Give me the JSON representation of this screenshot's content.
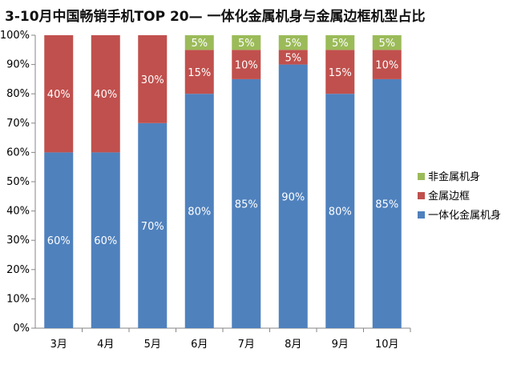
{
  "chart_data": {
    "type": "bar",
    "stacked": true,
    "title": "3-10月中国畅销手机TOP 20— 一体化金属机身与金属边框机型占比",
    "categories": [
      "3月",
      "4月",
      "5月",
      "6月",
      "7月",
      "8月",
      "9月",
      "10月"
    ],
    "series": [
      {
        "name": "一体化金属机身",
        "color": "#4f81bd",
        "values": [
          60,
          60,
          70,
          80,
          85,
          90,
          80,
          85
        ],
        "labels": [
          "60%",
          "60%",
          "70%",
          "80%",
          "85%",
          "90%",
          "80%",
          "85%"
        ]
      },
      {
        "name": "金属边框",
        "color": "#c0504d",
        "values": [
          40,
          40,
          30,
          15,
          10,
          5,
          15,
          10
        ],
        "labels": [
          "40%",
          "40%",
          "30%",
          "15%",
          "10%",
          "5%",
          "15%",
          "10%"
        ]
      },
      {
        "name": "非金属机身",
        "color": "#9bbb59",
        "values": [
          0,
          0,
          0,
          5,
          5,
          5,
          5,
          5
        ],
        "labels": [
          "",
          "",
          "",
          "5%",
          "5%",
          "5%",
          "5%",
          "5%"
        ]
      }
    ],
    "y_ticks": [
      "0%",
      "10%",
      "20%",
      "30%",
      "40%",
      "50%",
      "60%",
      "70%",
      "80%",
      "90%",
      "100%"
    ],
    "ylim": [
      0,
      100
    ],
    "grid": false,
    "legend_position": "right"
  }
}
